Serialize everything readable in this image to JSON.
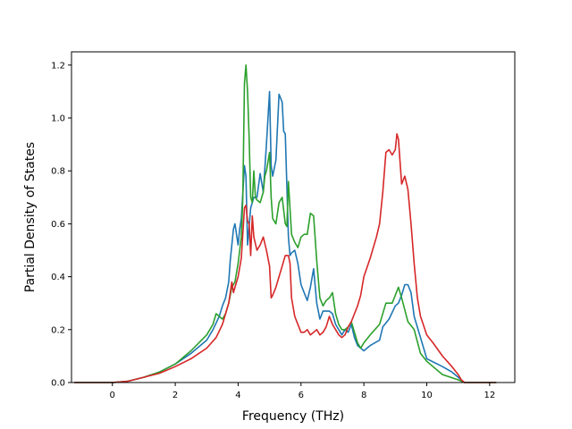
{
  "chart_data": {
    "type": "line",
    "title": "",
    "xlabel": "Frequency (THz)",
    "ylabel": "Partial Density of States",
    "xlim": [
      -1.3,
      12.8
    ],
    "ylim": [
      0.0,
      1.25
    ],
    "xticks": [
      0,
      2,
      4,
      6,
      8,
      10,
      12
    ],
    "yticks": [
      0.0,
      0.2,
      0.4,
      0.6,
      0.8,
      1.0,
      1.2
    ],
    "xtick_labels": [
      "0",
      "2",
      "4",
      "6",
      "8",
      "10",
      "12"
    ],
    "ytick_labels": [
      "0.0",
      "0.2",
      "0.4",
      "0.6",
      "0.8",
      "1.0",
      "1.2"
    ],
    "grid": false,
    "legend": false,
    "series": [
      {
        "color": "#1f77b4",
        "x": [
          -1.2,
          0.0,
          0.5,
          1.0,
          1.5,
          2.0,
          2.5,
          3.0,
          3.2,
          3.4,
          3.5,
          3.6,
          3.7,
          3.75,
          3.85,
          3.9,
          4.0,
          4.05,
          4.1,
          4.2,
          4.25,
          4.3,
          4.4,
          4.5,
          4.6,
          4.7,
          4.8,
          4.9,
          5.0,
          5.05,
          5.1,
          5.2,
          5.3,
          5.4,
          5.45,
          5.5,
          5.6,
          5.65,
          5.7,
          5.8,
          5.9,
          6.0,
          6.1,
          6.2,
          6.3,
          6.4,
          6.5,
          6.6,
          6.7,
          6.8,
          6.9,
          7.0,
          7.1,
          7.2,
          7.3,
          7.4,
          7.5,
          7.6,
          7.7,
          7.8,
          7.9,
          8.0,
          8.2,
          8.5,
          8.6,
          8.8,
          9.0,
          9.1,
          9.2,
          9.3,
          9.4,
          9.5,
          9.6,
          9.8,
          10.0,
          10.5,
          10.8,
          11.0,
          11.2,
          12.2
        ],
        "y": [
          0.0,
          0.0,
          0.005,
          0.02,
          0.04,
          0.07,
          0.11,
          0.16,
          0.2,
          0.25,
          0.29,
          0.32,
          0.38,
          0.46,
          0.58,
          0.6,
          0.52,
          0.58,
          0.62,
          0.82,
          0.78,
          0.52,
          0.66,
          0.7,
          0.7,
          0.79,
          0.72,
          0.9,
          1.1,
          0.82,
          0.78,
          0.84,
          1.09,
          1.06,
          0.95,
          0.94,
          0.55,
          0.48,
          0.49,
          0.5,
          0.45,
          0.37,
          0.34,
          0.31,
          0.36,
          0.43,
          0.3,
          0.24,
          0.27,
          0.27,
          0.27,
          0.26,
          0.22,
          0.2,
          0.18,
          0.2,
          0.19,
          0.22,
          0.17,
          0.14,
          0.13,
          0.12,
          0.14,
          0.16,
          0.21,
          0.24,
          0.29,
          0.3,
          0.33,
          0.37,
          0.37,
          0.34,
          0.25,
          0.17,
          0.09,
          0.06,
          0.04,
          0.02,
          0.0,
          0.0
        ]
      },
      {
        "color": "#2ca02c",
        "x": [
          -1.2,
          0.0,
          0.5,
          1.0,
          1.5,
          2.0,
          2.5,
          3.0,
          3.2,
          3.3,
          3.4,
          3.5,
          3.6,
          3.7,
          3.8,
          3.9,
          4.0,
          4.1,
          4.15,
          4.2,
          4.25,
          4.3,
          4.35,
          4.4,
          4.45,
          4.5,
          4.55,
          4.6,
          4.7,
          4.8,
          4.85,
          4.9,
          5.0,
          5.05,
          5.1,
          5.2,
          5.3,
          5.4,
          5.5,
          5.55,
          5.6,
          5.7,
          5.8,
          5.9,
          6.0,
          6.1,
          6.2,
          6.3,
          6.4,
          6.5,
          6.6,
          6.7,
          6.8,
          6.9,
          7.0,
          7.1,
          7.2,
          7.3,
          7.4,
          7.5,
          7.6,
          7.7,
          7.8,
          7.9,
          8.0,
          8.2,
          8.5,
          8.7,
          8.9,
          9.0,
          9.1,
          9.2,
          9.4,
          9.6,
          9.8,
          10.0,
          10.5,
          11.0,
          11.2,
          12.2
        ],
        "y": [
          0.0,
          0.0,
          0.005,
          0.02,
          0.04,
          0.07,
          0.12,
          0.18,
          0.22,
          0.26,
          0.25,
          0.24,
          0.26,
          0.3,
          0.36,
          0.38,
          0.45,
          0.55,
          0.7,
          1.13,
          1.2,
          1.1,
          0.92,
          0.7,
          0.68,
          0.8,
          0.7,
          0.69,
          0.68,
          0.72,
          0.78,
          0.8,
          0.87,
          0.7,
          0.62,
          0.6,
          0.68,
          0.7,
          0.6,
          0.59,
          0.76,
          0.56,
          0.53,
          0.51,
          0.55,
          0.56,
          0.56,
          0.64,
          0.63,
          0.46,
          0.32,
          0.29,
          0.31,
          0.32,
          0.34,
          0.26,
          0.22,
          0.2,
          0.2,
          0.21,
          0.23,
          0.19,
          0.15,
          0.13,
          0.15,
          0.18,
          0.22,
          0.3,
          0.3,
          0.33,
          0.36,
          0.32,
          0.23,
          0.2,
          0.11,
          0.08,
          0.03,
          0.01,
          0.0,
          0.0
        ]
      },
      {
        "color": "#d62728",
        "x": [
          -1.2,
          0.0,
          0.5,
          1.0,
          1.5,
          2.0,
          2.5,
          3.0,
          3.3,
          3.5,
          3.6,
          3.7,
          3.8,
          3.85,
          3.9,
          4.0,
          4.1,
          4.2,
          4.25,
          4.3,
          4.35,
          4.4,
          4.45,
          4.5,
          4.6,
          4.7,
          4.8,
          4.9,
          5.0,
          5.05,
          5.1,
          5.2,
          5.3,
          5.4,
          5.5,
          5.6,
          5.65,
          5.7,
          5.8,
          5.9,
          6.0,
          6.1,
          6.2,
          6.3,
          6.4,
          6.5,
          6.6,
          6.7,
          6.8,
          6.9,
          7.0,
          7.1,
          7.2,
          7.3,
          7.4,
          7.5,
          7.6,
          7.7,
          7.8,
          7.9,
          8.0,
          8.2,
          8.4,
          8.5,
          8.6,
          8.7,
          8.8,
          8.9,
          9.0,
          9.05,
          9.1,
          9.2,
          9.3,
          9.4,
          9.5,
          9.6,
          9.7,
          9.8,
          10.0,
          10.2,
          10.5,
          10.8,
          11.0,
          11.1,
          11.2,
          12.2
        ],
        "y": [
          0.0,
          0.0,
          0.005,
          0.02,
          0.035,
          0.06,
          0.09,
          0.13,
          0.17,
          0.22,
          0.26,
          0.3,
          0.38,
          0.34,
          0.36,
          0.4,
          0.47,
          0.66,
          0.67,
          0.61,
          0.6,
          0.48,
          0.63,
          0.55,
          0.5,
          0.52,
          0.55,
          0.5,
          0.44,
          0.32,
          0.33,
          0.36,
          0.4,
          0.44,
          0.48,
          0.48,
          0.45,
          0.32,
          0.25,
          0.22,
          0.19,
          0.19,
          0.2,
          0.18,
          0.19,
          0.2,
          0.18,
          0.19,
          0.21,
          0.25,
          0.22,
          0.2,
          0.18,
          0.17,
          0.18,
          0.21,
          0.23,
          0.26,
          0.29,
          0.33,
          0.4,
          0.47,
          0.55,
          0.6,
          0.72,
          0.87,
          0.88,
          0.86,
          0.88,
          0.94,
          0.92,
          0.75,
          0.78,
          0.73,
          0.6,
          0.45,
          0.32,
          0.25,
          0.18,
          0.15,
          0.1,
          0.06,
          0.03,
          0.01,
          0.0,
          0.0
        ]
      }
    ]
  }
}
